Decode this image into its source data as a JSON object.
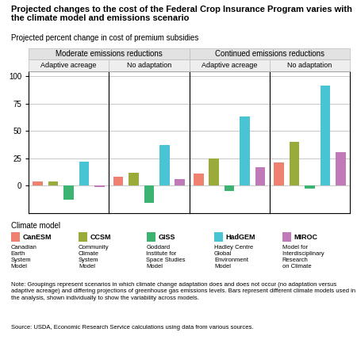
{
  "title": "Projected changes to the cost of the Federal Crop Insurance Program varies with the climate model and emissions scenario",
  "subtitle": "Projected percent change in cost of premium subsidies",
  "legend_title": "Climate model",
  "legend_entries": [
    {
      "label": "CanESM",
      "description": "Canadian\nEarth\nSystem\nModel"
    },
    {
      "label": "CCSM",
      "description": "Community\nClimate\nSystem\nModel"
    },
    {
      "label": "GISS",
      "description": "Goddard\nInstitute for\nSpace Studies\nModel"
    },
    {
      "label": "HadGEM",
      "description": "Hadley Centre\nGlobal\nEnvironment\nModel"
    },
    {
      "label": "MIROC",
      "description": "Model for\nInterdisciplinary\nResearch\non Climate"
    }
  ],
  "note": "Note: Groupings represent scenarios in which climate change adaptation does and does not occur (no adaptation versus adaptive acreage) and differing projections of greenhouse gas emissions levels. Bars represent different climate models used in the analysis, shown individually to show the variability across models.",
  "source": "Source: USDA, Economic Research Service calculations using data from various sources.",
  "chart_data": [
    {
      "type": "bar",
      "group": "Moderate emissions reductions",
      "title": "Adaptive acreage",
      "categories": [
        "CanESM",
        "CCSM",
        "GISS",
        "HadGEM",
        "MIROC"
      ],
      "values": [
        4,
        4,
        -13,
        22,
        -1
      ],
      "colors": [
        "#F08070",
        "#9AAB3A",
        "#3CB371",
        "#48C4D4",
        "#C07AB8"
      ],
      "ylim": [
        -25,
        105
      ],
      "yticks": [
        0,
        25,
        50,
        75,
        100
      ],
      "grid": true,
      "tick_labels": "y"
    },
    {
      "type": "bar",
      "group": "Moderate emissions reductions",
      "title": "No adaptation",
      "categories": [
        "CanESM",
        "CCSM",
        "GISS",
        "HadGEM",
        "MIROC"
      ],
      "values": [
        8,
        12,
        -16,
        37,
        6
      ],
      "colors": [
        "#F08070",
        "#9AAB3A",
        "#3CB371",
        "#48C4D4",
        "#C07AB8"
      ],
      "ylim": [
        -25,
        105
      ],
      "yticks": [
        0,
        25,
        50,
        75,
        100
      ],
      "grid": true,
      "tick_labels": false
    },
    {
      "type": "bar",
      "group": "Continued emissions reductions",
      "title": "Adaptive acreage",
      "categories": [
        "CanESM",
        "CCSM",
        "GISS",
        "HadGEM",
        "MIROC"
      ],
      "values": [
        11,
        25,
        -5,
        63,
        17
      ],
      "colors": [
        "#F08070",
        "#9AAB3A",
        "#3CB371",
        "#48C4D4",
        "#C07AB8"
      ],
      "ylim": [
        -25,
        105
      ],
      "yticks": [
        0,
        25,
        50,
        75,
        100
      ],
      "grid": true,
      "tick_labels": false
    },
    {
      "type": "bar",
      "group": "Continued emissions reductions",
      "title": "No adaptation",
      "categories": [
        "CanESM",
        "CCSM",
        "GISS",
        "HadGEM",
        "MIROC"
      ],
      "values": [
        21,
        40,
        -3,
        92,
        31
      ],
      "colors": [
        "#F08070",
        "#9AAB3A",
        "#3CB371",
        "#48C4D4",
        "#C07AB8"
      ],
      "ylim": [
        -25,
        105
      ],
      "yticks": [
        0,
        25,
        50,
        75,
        100
      ],
      "grid": true,
      "tick_labels": false
    }
  ]
}
